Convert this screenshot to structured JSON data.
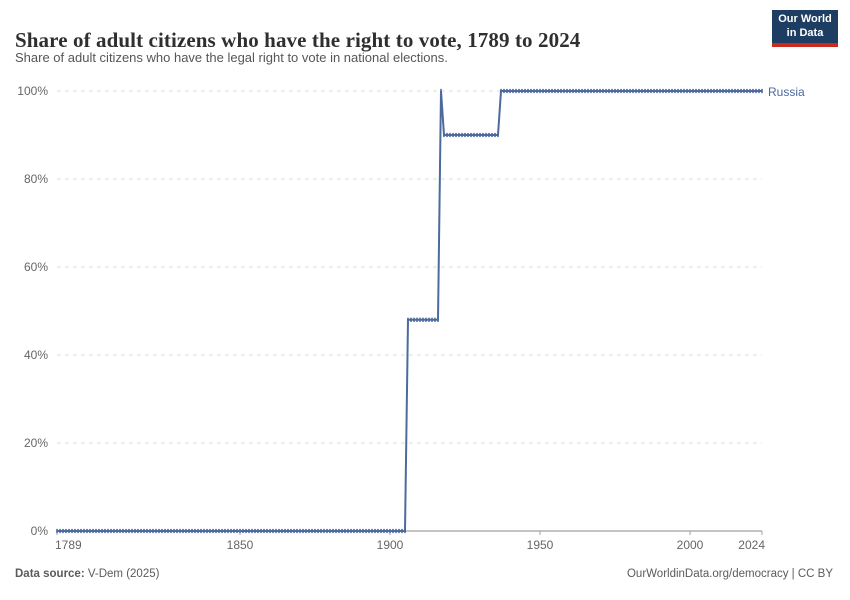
{
  "header": {
    "title": "Share of adult citizens who have the right to vote, 1789 to 2024",
    "subtitle": "Share of adult citizens who have the legal right to vote in national elections.",
    "logo": {
      "line1": "Our World",
      "line2": "in Data"
    }
  },
  "chart_data": {
    "type": "line",
    "title": "Share of adult citizens who have the right to vote, 1789 to 2024",
    "xlabel": "",
    "ylabel": "",
    "xlim": [
      1789,
      2024
    ],
    "ylim": [
      0,
      100
    ],
    "xticks": [
      1789,
      1850,
      1900,
      1950,
      2000,
      2024
    ],
    "yticks": [
      0,
      20,
      40,
      60,
      80,
      100
    ],
    "ytick_suffix": "%",
    "grid": "horizontal-dashed",
    "legend_position": "end-of-line",
    "marker_style": "yearly-tick-markers",
    "series": [
      {
        "name": "Russia",
        "color": "#4c6a9e",
        "points": [
          [
            1789,
            0
          ],
          [
            1905,
            0
          ],
          [
            1906,
            48
          ],
          [
            1916,
            48
          ],
          [
            1917,
            100
          ],
          [
            1918,
            90
          ],
          [
            1936,
            90
          ],
          [
            1937,
            100
          ],
          [
            2024,
            100
          ]
        ]
      }
    ]
  },
  "footer": {
    "source_label": "Data source:",
    "source_value": " V-Dem (2025)",
    "link": "OurWorldinData.org/democracy | CC BY"
  },
  "colors": {
    "line": "#4c6a9e",
    "gridline": "#dcdcdc",
    "axis_line": "#8a8a8a",
    "tick": "#a3a3a3",
    "tick_text": "#666666",
    "logo_bg": "#1d3d63",
    "logo_accent": "#cc2a1e"
  }
}
